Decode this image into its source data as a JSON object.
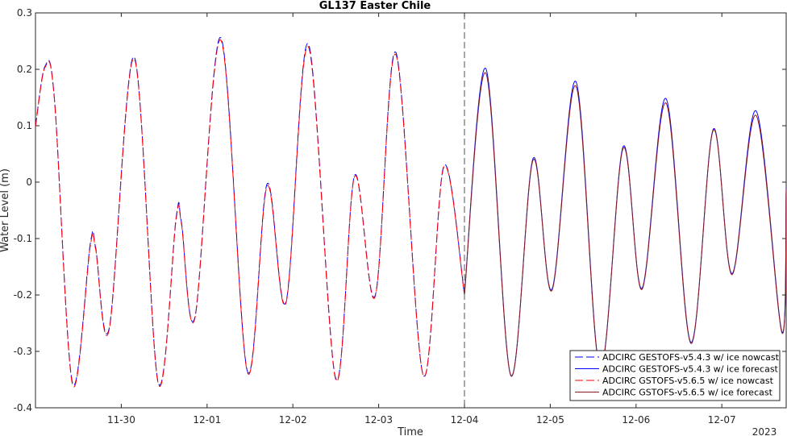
{
  "chart_data": {
    "type": "line",
    "title": "GL137 Easter Chile",
    "xlabel": "Time",
    "ylabel": "Water Level (m)",
    "year_label": "2023",
    "xlim": [
      0,
      8.75
    ],
    "ylim": [
      -0.4,
      0.3
    ],
    "x_ticks": [
      {
        "x": 1.0,
        "label": "11-30"
      },
      {
        "x": 2.0,
        "label": "12-01"
      },
      {
        "x": 3.0,
        "label": "12-02"
      },
      {
        "x": 4.0,
        "label": "12-03"
      },
      {
        "x": 5.0,
        "label": "12-04"
      },
      {
        "x": 6.0,
        "label": "12-05"
      },
      {
        "x": 7.0,
        "label": "12-06"
      },
      {
        "x": 8.0,
        "label": "12-07"
      }
    ],
    "y_ticks": [
      -0.4,
      -0.3,
      -0.2,
      -0.1,
      0,
      0.1,
      0.2,
      0.3
    ],
    "y_tick_labels": [
      "-0.4",
      "-0.3",
      "-0.2",
      "-0.1",
      "0",
      "0.1",
      "0.2",
      "0.3"
    ],
    "forecast_start_x": 5.0,
    "legend_position": "bottom-right",
    "grid": false,
    "series": [
      {
        "name": "ADCIRC GESTOFS-v5.4.3 w/ ice nowcast",
        "color": "#0000ff",
        "dash": true,
        "points": [
          [
            0,
            0.1
          ],
          [
            0.11,
            0.205
          ],
          [
            0.22,
            0.15
          ],
          [
            0.43,
            -0.355
          ],
          [
            0.64,
            -0.108
          ],
          [
            0.7,
            -0.115
          ],
          [
            0.86,
            -0.258
          ],
          [
            1.15,
            0.222
          ],
          [
            1.43,
            -0.355
          ],
          [
            1.64,
            -0.062
          ],
          [
            1.7,
            -0.07
          ],
          [
            1.86,
            -0.238
          ],
          [
            2.16,
            0.256
          ],
          [
            2.47,
            -0.335
          ],
          [
            2.7,
            -0.003
          ],
          [
            2.92,
            -0.212
          ],
          [
            3.18,
            0.245
          ],
          [
            3.5,
            -0.348
          ],
          [
            3.72,
            0.012
          ],
          [
            3.96,
            -0.201
          ],
          [
            4.2,
            0.23
          ],
          [
            4.52,
            -0.342
          ],
          [
            4.76,
            0.029
          ],
          [
            5.0,
            -0.198
          ]
        ]
      },
      {
        "name": "ADCIRC GESTOFS-v5.4.3 w/ ice forecast",
        "color": "#0000ff",
        "dash": false,
        "points": [
          [
            5.0,
            -0.198
          ],
          [
            5.25,
            0.201
          ],
          [
            5.54,
            -0.342
          ],
          [
            5.8,
            0.042
          ],
          [
            6.02,
            -0.19
          ],
          [
            6.3,
            0.178
          ],
          [
            6.58,
            -0.33
          ],
          [
            6.85,
            0.063
          ],
          [
            7.07,
            -0.188
          ],
          [
            7.35,
            0.148
          ],
          [
            7.64,
            -0.284
          ],
          [
            7.9,
            0.094
          ],
          [
            8.12,
            -0.162
          ],
          [
            8.4,
            0.126
          ],
          [
            8.7,
            -0.265
          ],
          [
            8.75,
            -0.01
          ]
        ]
      },
      {
        "name": "ADCIRC GSTOFS-v5.6.5 w/ ice nowcast",
        "color": "#ff0000",
        "dash": true,
        "points": [
          [
            0,
            0.098
          ],
          [
            0.11,
            0.203
          ],
          [
            0.22,
            0.148
          ],
          [
            0.43,
            -0.358
          ],
          [
            0.64,
            -0.112
          ],
          [
            0.7,
            -0.118
          ],
          [
            0.86,
            -0.261
          ],
          [
            1.15,
            0.219
          ],
          [
            1.43,
            -0.357
          ],
          [
            1.64,
            -0.065
          ],
          [
            1.7,
            -0.073
          ],
          [
            1.86,
            -0.24
          ],
          [
            2.16,
            0.252
          ],
          [
            2.47,
            -0.337
          ],
          [
            2.7,
            -0.007
          ],
          [
            2.92,
            -0.214
          ],
          [
            3.18,
            0.24
          ],
          [
            3.5,
            -0.35
          ],
          [
            3.72,
            0.01
          ],
          [
            3.96,
            -0.203
          ],
          [
            4.2,
            0.226
          ],
          [
            4.52,
            -0.343
          ],
          [
            4.76,
            0.027
          ],
          [
            5.0,
            -0.2
          ]
        ]
      },
      {
        "name": "ADCIRC GSTOFS-v5.6.5 w/ ice forecast",
        "color": "#8b1a1a",
        "dash": false,
        "points": [
          [
            5.0,
            -0.2
          ],
          [
            5.25,
            0.193
          ],
          [
            5.54,
            -0.343
          ],
          [
            5.8,
            0.039
          ],
          [
            6.02,
            -0.192
          ],
          [
            6.3,
            0.17
          ],
          [
            6.58,
            -0.332
          ],
          [
            6.85,
            0.06
          ],
          [
            7.07,
            -0.19
          ],
          [
            7.35,
            0.14
          ],
          [
            7.64,
            -0.286
          ],
          [
            7.9,
            0.092
          ],
          [
            8.12,
            -0.164
          ],
          [
            8.4,
            0.118
          ],
          [
            8.7,
            -0.267
          ],
          [
            8.75,
            -0.012
          ]
        ]
      }
    ]
  }
}
